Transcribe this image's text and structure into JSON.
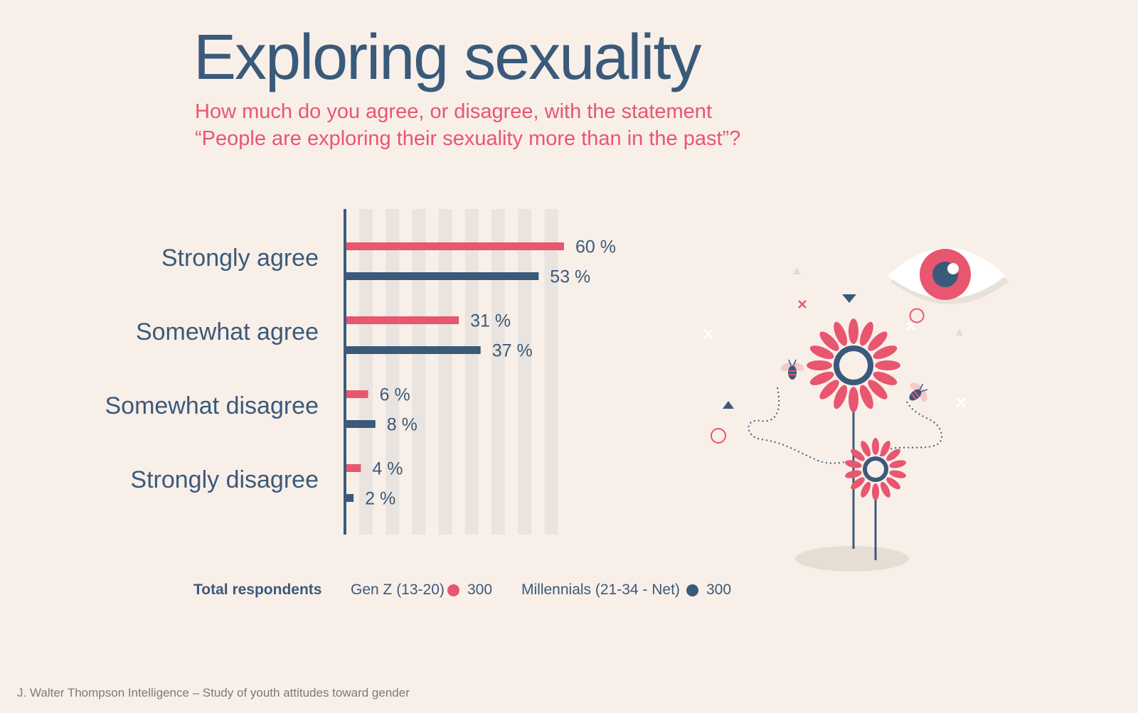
{
  "title": "Exploring sexuality",
  "subtitle": {
    "line1": "How much do you agree, or disagree, with the statement",
    "line2": "“People are exploring their sexuality more than in the past”?"
  },
  "colors": {
    "genz": "#e8566f",
    "millennials": "#3a5a7a",
    "background": "#f9efe9",
    "gridband": "#e9e4df"
  },
  "chart_data": {
    "type": "bar",
    "orientation": "horizontal",
    "categories": [
      "Strongly agree",
      "Somewhat agree",
      "Somewhat disagree",
      "Strongly disagree"
    ],
    "series": [
      {
        "name": "Gen Z (13-20)",
        "values": [
          60,
          31,
          6,
          4
        ],
        "labels": [
          "60 %",
          "31 %",
          "6 %",
          "4 %"
        ]
      },
      {
        "name": "Millennials (21-34 - Net)",
        "values": [
          53,
          37,
          8,
          2
        ],
        "labels": [
          "53 %",
          "37 %",
          "8 %",
          "2 %"
        ]
      }
    ],
    "xlim": [
      0,
      60
    ],
    "unit": "%"
  },
  "legend": {
    "title": "Total respondents",
    "genz_label": "Gen Z (13-20)",
    "genz_count": "300",
    "millennials_label": "Millennials (21-34 - Net)",
    "millennials_count": "300"
  },
  "footer": "J. Walter Thompson Intelligence – Study of youth attitudes toward gender",
  "illustration": [
    "eye-icon",
    "flower-icon",
    "bee-icon"
  ]
}
